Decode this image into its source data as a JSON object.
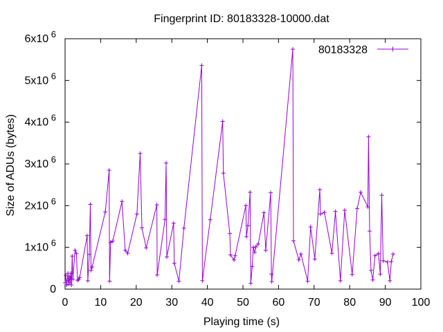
{
  "chart_data": {
    "type": "line",
    "title": "Fingerprint ID: 80183328-10000.dat",
    "xlabel": "Playing time (s)",
    "ylabel": "Size of ADUs (bytes)",
    "xlim": [
      0,
      100
    ],
    "ylim": [
      0,
      6000000
    ],
    "x_ticks": [
      0,
      10,
      20,
      30,
      40,
      50,
      60,
      70,
      80,
      90,
      100
    ],
    "y_ticks": [
      {
        "value": 0,
        "base": "0",
        "exp": ""
      },
      {
        "value": 1000000,
        "base": "1x10",
        "exp": "6"
      },
      {
        "value": 2000000,
        "base": "2x10",
        "exp": "6"
      },
      {
        "value": 3000000,
        "base": "3x10",
        "exp": "6"
      },
      {
        "value": 4000000,
        "base": "4x10",
        "exp": "6"
      },
      {
        "value": 5000000,
        "base": "5x10",
        "exp": "6"
      },
      {
        "value": 6000000,
        "base": "6x10",
        "exp": "6"
      }
    ],
    "grid": false,
    "legend_position": "top-right",
    "series": [
      {
        "name": "80183328",
        "color": "#9400d3",
        "points": [
          [
            0.0,
            150000
          ],
          [
            0.2,
            330000
          ],
          [
            0.4,
            100000
          ],
          [
            0.6,
            200000
          ],
          [
            0.8,
            380000
          ],
          [
            1.0,
            120000
          ],
          [
            1.2,
            300000
          ],
          [
            1.4,
            160000
          ],
          [
            1.6,
            380000
          ],
          [
            1.8,
            100000
          ],
          [
            2.0,
            790000
          ],
          [
            2.2,
            240000
          ],
          [
            2.8,
            930000
          ],
          [
            3.2,
            850000
          ],
          [
            3.5,
            210000
          ],
          [
            3.8,
            230000
          ],
          [
            4.1,
            280000
          ],
          [
            6.2,
            1280000
          ],
          [
            6.4,
            200000
          ],
          [
            6.8,
            830000
          ],
          [
            7.1,
            2030000
          ],
          [
            7.3,
            450000
          ],
          [
            7.6,
            530000
          ],
          [
            11.3,
            1850000
          ],
          [
            12.4,
            2850000
          ],
          [
            12.5,
            190000
          ],
          [
            12.8,
            1120000
          ],
          [
            13.4,
            1150000
          ],
          [
            16.0,
            2100000
          ],
          [
            16.9,
            930000
          ],
          [
            17.6,
            860000
          ],
          [
            20.2,
            1800000
          ],
          [
            21.1,
            3250000
          ],
          [
            21.6,
            1470000
          ],
          [
            22.8,
            990000
          ],
          [
            25.8,
            2020000
          ],
          [
            25.9,
            340000
          ],
          [
            28.1,
            1670000
          ],
          [
            28.4,
            3020000
          ],
          [
            28.6,
            770000
          ],
          [
            30.5,
            1580000
          ],
          [
            30.7,
            620000
          ],
          [
            32.0,
            190000
          ],
          [
            33.4,
            1460000
          ],
          [
            38.4,
            5360000
          ],
          [
            38.6,
            200000
          ],
          [
            40.8,
            1660000
          ],
          [
            44.3,
            4020000
          ],
          [
            44.5,
            2780000
          ],
          [
            46.3,
            1330000
          ],
          [
            46.5,
            820000
          ],
          [
            47.5,
            700000
          ],
          [
            47.8,
            800000
          ],
          [
            50.8,
            2000000
          ],
          [
            51.0,
            1260000
          ],
          [
            51.4,
            1520000
          ],
          [
            52.0,
            2320000
          ],
          [
            52.2,
            140000
          ],
          [
            52.6,
            540000
          ],
          [
            52.9,
            1000000
          ],
          [
            53.3,
            880000
          ],
          [
            53.6,
            1010000
          ],
          [
            54.3,
            1080000
          ],
          [
            55.9,
            1830000
          ],
          [
            56.4,
            930000
          ],
          [
            57.8,
            2310000
          ],
          [
            58.0,
            360000
          ],
          [
            58.1,
            180000
          ],
          [
            64.0,
            5750000
          ],
          [
            64.2,
            1160000
          ],
          [
            65.7,
            700000
          ],
          [
            66.3,
            840000
          ],
          [
            68.2,
            190000
          ],
          [
            69.0,
            1490000
          ],
          [
            70.2,
            720000
          ],
          [
            71.6,
            2380000
          ],
          [
            71.8,
            1800000
          ],
          [
            72.9,
            1840000
          ],
          [
            75.0,
            860000
          ],
          [
            76.0,
            1860000
          ],
          [
            77.4,
            200000
          ],
          [
            78.6,
            1890000
          ],
          [
            80.7,
            350000
          ],
          [
            82.1,
            1930000
          ],
          [
            83.1,
            2320000
          ],
          [
            85.1,
            1970000
          ],
          [
            85.3,
            3650000
          ],
          [
            85.6,
            1390000
          ],
          [
            86.0,
            450000
          ],
          [
            86.5,
            220000
          ],
          [
            87.1,
            800000
          ],
          [
            88.1,
            850000
          ],
          [
            88.6,
            360000
          ],
          [
            89.0,
            2250000
          ],
          [
            89.4,
            680000
          ],
          [
            90.6,
            650000
          ],
          [
            91.3,
            200000
          ],
          [
            91.7,
            660000
          ],
          [
            92.2,
            840000
          ]
        ]
      }
    ]
  }
}
